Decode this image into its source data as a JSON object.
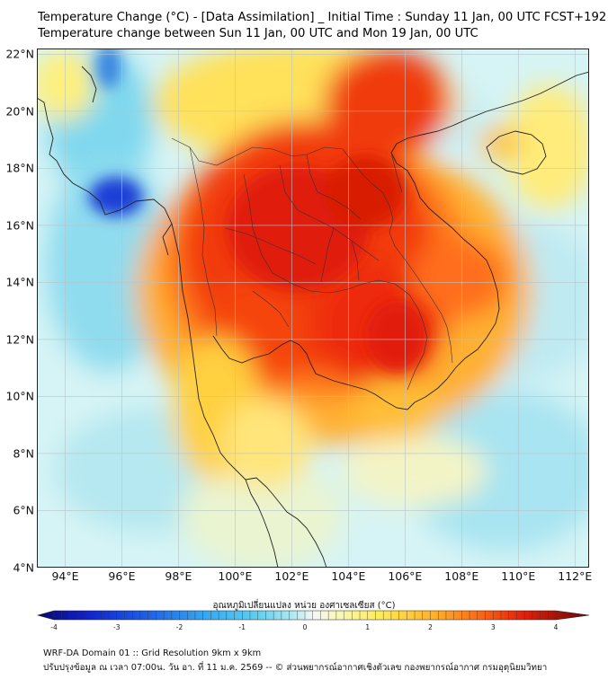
{
  "title": {
    "line1": "Temperature Change (°C) - [Data Assimilation] _ Initial Time : Sunday 11 Jan, 00 UTC FCST+192",
    "line2": "Temperature change between Sun 11 Jan, 00 UTC and Mon 19 Jan, 00 UTC"
  },
  "map": {
    "lon_range": [
      93,
      112.5
    ],
    "lat_range": [
      4,
      22.2
    ],
    "lat_ticks": [
      {
        "value": 22,
        "label": "22°N"
      },
      {
        "value": 20,
        "label": "20°N"
      },
      {
        "value": 18,
        "label": "18°N"
      },
      {
        "value": 16,
        "label": "16°N"
      },
      {
        "value": 14,
        "label": "14°N"
      },
      {
        "value": 12,
        "label": "12°N"
      },
      {
        "value": 10,
        "label": "10°N"
      },
      {
        "value": 8,
        "label": "8°N"
      },
      {
        "value": 6,
        "label": "6°N"
      },
      {
        "value": 4,
        "label": "4°N"
      }
    ],
    "lon_ticks": [
      {
        "value": 94,
        "label": "94°E"
      },
      {
        "value": 96,
        "label": "96°E"
      },
      {
        "value": 98,
        "label": "98°E"
      },
      {
        "value": 100,
        "label": "100°E"
      },
      {
        "value": 102,
        "label": "102°E"
      },
      {
        "value": 104,
        "label": "104°E"
      },
      {
        "value": 106,
        "label": "106°E"
      },
      {
        "value": 108,
        "label": "108°E"
      },
      {
        "value": 110,
        "label": "110°E"
      },
      {
        "value": 112,
        "label": "112°E"
      }
    ]
  },
  "colorbar": {
    "title": "อุณหภูมิเปลี่ยนแปลง หน่วย องศาเซลเซียส (°C)",
    "min": -4,
    "max": 4,
    "ticks": [
      {
        "value": -4,
        "label": "-4"
      },
      {
        "value": -3,
        "label": "-3"
      },
      {
        "value": -2,
        "label": "-2"
      },
      {
        "value": -1,
        "label": "-1"
      },
      {
        "value": 0,
        "label": "0"
      },
      {
        "value": 1,
        "label": "1"
      },
      {
        "value": 2,
        "label": "2"
      },
      {
        "value": 3,
        "label": "3"
      },
      {
        "value": 4,
        "label": "4"
      }
    ]
  },
  "footer": {
    "line1": "WRF-DA Domain 01 :: Grid Resolution 9km x 9km",
    "line2": "ปรับปรุงข้อมูล ณ เวลา 07:00น. วัน อา. ที่ 11 ม.ค. 2569 -- © ส่วนพยากรณ์อากาศเชิงตัวเลข กองพยากรณ์อากาศ กรมอุตุนิยมวิทยา"
  }
}
